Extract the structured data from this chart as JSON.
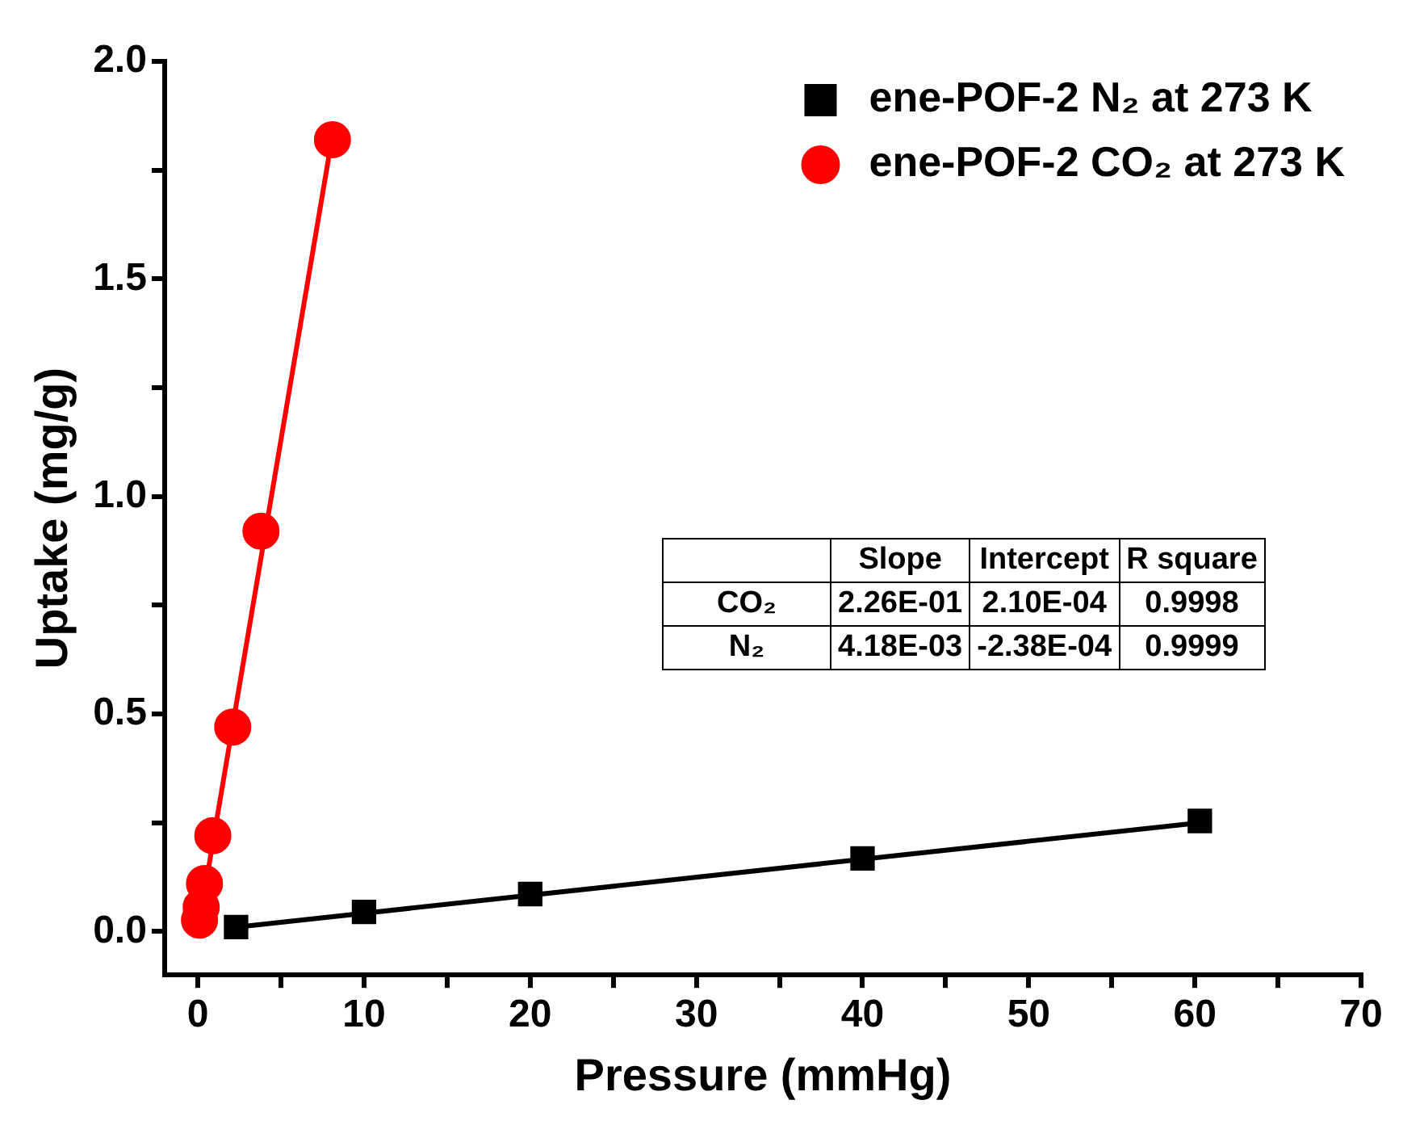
{
  "chart_data": {
    "type": "scatter",
    "xlabel": "Pressure (mmHg)",
    "ylabel": "Uptake (mg/g)",
    "xlim": [
      -2,
      70
    ],
    "ylim": [
      -0.1,
      2.0
    ],
    "xticks": [
      0,
      {
        "value": 5,
        "label": null
      },
      10,
      {
        "value": 15,
        "label": null
      },
      20,
      {
        "value": 25,
        "label": null
      },
      30,
      {
        "value": 35,
        "label": null
      },
      40,
      {
        "value": 45,
        "label": null
      },
      50,
      {
        "value": 55,
        "label": null
      },
      60,
      {
        "value": 65,
        "label": null
      },
      70
    ],
    "yticks": [
      {
        "value": 0,
        "label": "0.0"
      },
      {
        "value": 0.25,
        "label": null
      },
      {
        "value": 0.5,
        "label": "0.5"
      },
      {
        "value": 0.75,
        "label": null
      },
      {
        "value": 1,
        "label": "1.0"
      },
      {
        "value": 1.25,
        "label": null
      },
      {
        "value": 1.5,
        "label": "1.5"
      },
      {
        "value": 1.75,
        "label": null
      },
      {
        "value": 2,
        "label": "2.0"
      }
    ],
    "grid": false,
    "legend": "top right",
    "series": [
      {
        "name": "ene-POF-2 N₂ at 273 K",
        "color": "#000000",
        "marker": "square",
        "x": [
          2.3,
          10,
          20,
          40,
          60.3
        ],
        "values": [
          0.01,
          0.045,
          0.086,
          0.168,
          0.254
        ]
      },
      {
        "name": "ene-POF-2 CO₂ at 273 K",
        "color": "#ff0000",
        "marker": "circle",
        "x": [
          0.1,
          0.2,
          0.4,
          0.9,
          2.1,
          3.8,
          8.1
        ],
        "values": [
          0.026,
          0.056,
          0.11,
          0.22,
          0.47,
          0.92,
          1.82
        ]
      },
      {
        "type": "line",
        "color": "#000000",
        "x": [
          2.3,
          60.3
        ],
        "values": [
          0.01,
          0.25
        ]
      },
      {
        "type": "line",
        "color": "#ff0000",
        "x": [
          0,
          8.1
        ],
        "values": [
          0,
          1.83
        ]
      }
    ],
    "annotations": [
      "Slope",
      "Intercept",
      "R square",
      "CO₂",
      "2.26E-01",
      "2.10E-04",
      "0.9998",
      "N₂",
      "4.18E-03",
      "-2.38E-04",
      "0.9999"
    ]
  }
}
